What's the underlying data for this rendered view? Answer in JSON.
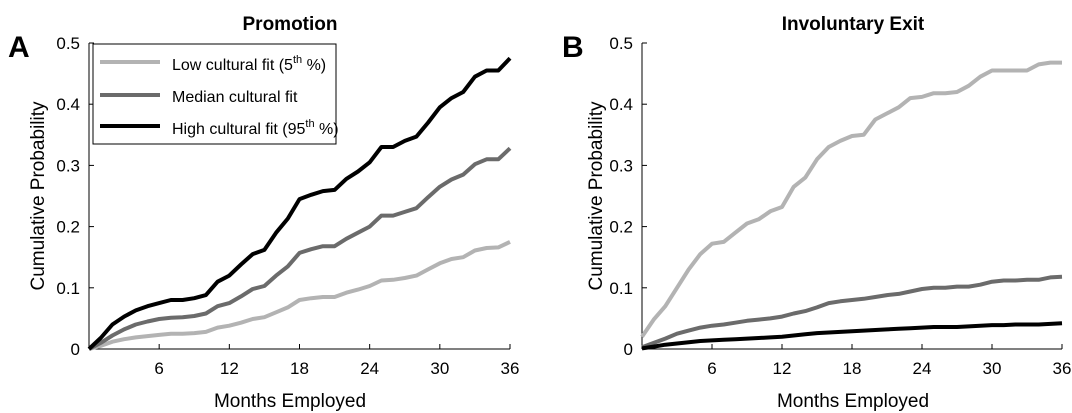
{
  "chart_data": [
    {
      "type": "line",
      "panel_letter": "A",
      "title": "Promotion",
      "xlabel": "Months Employed",
      "ylabel": "Cumulative Probability",
      "xlim": [
        0,
        36
      ],
      "ylim": [
        0,
        0.5
      ],
      "xticks": [
        "6",
        "12",
        "18",
        "24",
        "30",
        "36"
      ],
      "yticks": [
        "0",
        "0.1",
        "0.2",
        "0.3",
        "0.4",
        "0.5"
      ],
      "grid": false,
      "legend_position": "top-left",
      "x": [
        0,
        1,
        2,
        3,
        4,
        5,
        6,
        7,
        8,
        9,
        10,
        11,
        12,
        13,
        14,
        15,
        16,
        17,
        18,
        19,
        20,
        21,
        22,
        23,
        24,
        25,
        26,
        27,
        28,
        29,
        30,
        31,
        32,
        33,
        34,
        35,
        36
      ],
      "series": [
        {
          "name": "Low cultural fit (5",
          "name_sup": "th",
          "name_suffix": " %)",
          "color": "#b3b3b3",
          "values": [
            0,
            0.005,
            0.012,
            0.016,
            0.019,
            0.021,
            0.023,
            0.025,
            0.025,
            0.026,
            0.028,
            0.035,
            0.038,
            0.043,
            0.049,
            0.052,
            0.06,
            0.068,
            0.08,
            0.083,
            0.085,
            0.085,
            0.092,
            0.097,
            0.103,
            0.112,
            0.113,
            0.116,
            0.12,
            0.13,
            0.14,
            0.147,
            0.15,
            0.161,
            0.165,
            0.166,
            0.175
          ]
        },
        {
          "name": "Median cultural fit",
          "color": "#6b6b6b",
          "values": [
            0,
            0.01,
            0.022,
            0.032,
            0.04,
            0.045,
            0.049,
            0.051,
            0.052,
            0.054,
            0.058,
            0.07,
            0.075,
            0.086,
            0.098,
            0.103,
            0.12,
            0.135,
            0.157,
            0.163,
            0.168,
            0.168,
            0.18,
            0.19,
            0.2,
            0.218,
            0.218,
            0.224,
            0.23,
            0.248,
            0.265,
            0.277,
            0.285,
            0.302,
            0.31,
            0.31,
            0.328
          ]
        },
        {
          "name": "High cultural fit (95",
          "name_sup": "th",
          "name_suffix": " %)",
          "color": "#000000",
          "values": [
            0,
            0.018,
            0.04,
            0.053,
            0.063,
            0.07,
            0.075,
            0.08,
            0.08,
            0.083,
            0.088,
            0.11,
            0.12,
            0.138,
            0.155,
            0.162,
            0.19,
            0.213,
            0.245,
            0.252,
            0.258,
            0.26,
            0.278,
            0.29,
            0.305,
            0.33,
            0.33,
            0.34,
            0.347,
            0.37,
            0.395,
            0.41,
            0.42,
            0.445,
            0.455,
            0.455,
            0.475
          ]
        }
      ]
    },
    {
      "type": "line",
      "panel_letter": "B",
      "title": "Involuntary Exit",
      "xlabel": "Months Employed",
      "ylabel": "Cumulative Probability",
      "xlim": [
        0,
        36
      ],
      "ylim": [
        0,
        0.5
      ],
      "xticks": [
        "6",
        "12",
        "18",
        "24",
        "30",
        "36"
      ],
      "yticks": [
        "0",
        "0.1",
        "0.2",
        "0.3",
        "0.4",
        "0.5"
      ],
      "grid": false,
      "x": [
        0,
        1,
        2,
        3,
        4,
        5,
        6,
        7,
        8,
        9,
        10,
        11,
        12,
        13,
        14,
        15,
        16,
        17,
        18,
        19,
        20,
        21,
        22,
        23,
        24,
        25,
        26,
        27,
        28,
        29,
        30,
        31,
        32,
        33,
        34,
        35,
        36
      ],
      "series": [
        {
          "name": "Low cultural fit",
          "color": "#b3b3b3",
          "values": [
            0.02,
            0.048,
            0.07,
            0.1,
            0.13,
            0.155,
            0.172,
            0.175,
            0.19,
            0.205,
            0.212,
            0.225,
            0.232,
            0.265,
            0.28,
            0.31,
            0.33,
            0.34,
            0.348,
            0.35,
            0.375,
            0.385,
            0.395,
            0.41,
            0.412,
            0.418,
            0.418,
            0.42,
            0.43,
            0.445,
            0.455,
            0.455,
            0.455,
            0.455,
            0.465,
            0.468,
            0.468
          ]
        },
        {
          "name": "Median cultural fit",
          "color": "#6b6b6b",
          "values": [
            0.003,
            0.01,
            0.017,
            0.025,
            0.03,
            0.035,
            0.038,
            0.04,
            0.043,
            0.046,
            0.048,
            0.05,
            0.053,
            0.058,
            0.062,
            0.068,
            0.075,
            0.078,
            0.08,
            0.082,
            0.085,
            0.088,
            0.09,
            0.094,
            0.098,
            0.1,
            0.1,
            0.102,
            0.102,
            0.105,
            0.11,
            0.112,
            0.112,
            0.113,
            0.113,
            0.117,
            0.118
          ]
        },
        {
          "name": "High cultural fit",
          "color": "#000000",
          "values": [
            0.001,
            0.004,
            0.007,
            0.009,
            0.011,
            0.013,
            0.014,
            0.015,
            0.016,
            0.017,
            0.018,
            0.019,
            0.02,
            0.022,
            0.024,
            0.026,
            0.027,
            0.028,
            0.029,
            0.03,
            0.031,
            0.032,
            0.033,
            0.034,
            0.035,
            0.036,
            0.036,
            0.036,
            0.037,
            0.038,
            0.039,
            0.039,
            0.04,
            0.04,
            0.04,
            0.041,
            0.042
          ]
        }
      ]
    }
  ]
}
